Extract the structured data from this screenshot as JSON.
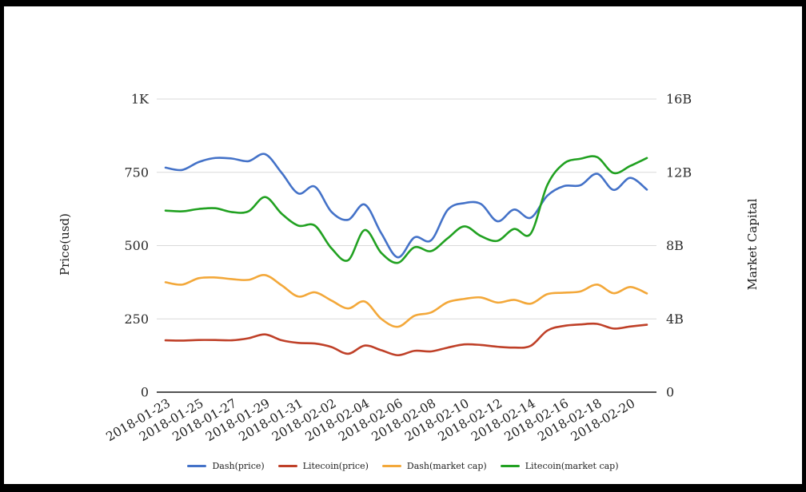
{
  "page": {
    "background": "#ffffff",
    "border_color": "#000000"
  },
  "chart_data": {
    "type": "line",
    "title": "",
    "x": [
      "2018-01-23",
      "2018-01-24",
      "2018-01-25",
      "2018-01-26",
      "2018-01-27",
      "2018-01-28",
      "2018-01-29",
      "2018-01-30",
      "2018-01-31",
      "2018-02-01",
      "2018-02-02",
      "2018-02-03",
      "2018-02-04",
      "2018-02-05",
      "2018-02-06",
      "2018-02-07",
      "2018-02-08",
      "2018-02-09",
      "2018-02-10",
      "2018-02-11",
      "2018-02-12",
      "2018-02-13",
      "2018-02-14",
      "2018-02-15",
      "2018-02-16",
      "2018-02-17",
      "2018-02-18",
      "2018-02-19",
      "2018-02-20",
      "2018-02-21"
    ],
    "x_tick_labels": [
      "2018-01-23",
      "2018-01-25",
      "2018-01-27",
      "2018-01-29",
      "2018-01-31",
      "2018-02-02",
      "2018-02-04",
      "2018-02-06",
      "2018-02-08",
      "2018-02-10",
      "2018-02-12",
      "2018-02-14",
      "2018-02-16",
      "2018-02-18",
      "2018-02-20"
    ],
    "left_axis": {
      "label": "Price(usd)",
      "min": 0,
      "max": 1000,
      "tick_values": [
        0,
        250,
        500,
        750,
        1000
      ],
      "tick_labels": [
        "0",
        "250",
        "500",
        "750",
        "1K"
      ]
    },
    "right_axis": {
      "label": "Market Capital",
      "min": 0,
      "max": 16,
      "unit": "billions",
      "tick_values": [
        0,
        4,
        8,
        12,
        16
      ],
      "tick_labels": [
        "0",
        "4B",
        "8B",
        "12B",
        "16B"
      ]
    },
    "grid": {
      "gridline_color": "#d9d9d9",
      "axis_line_color": "#1a1a1a",
      "vertical_gridlines": false
    },
    "legend_position": "bottom",
    "series": [
      {
        "name": "Dash(price)",
        "axis": "left",
        "color": "#4472C8",
        "values": [
          766,
          758,
          785,
          799,
          797,
          788,
          812,
          748,
          678,
          701,
          615,
          588,
          640,
          542,
          460,
          528,
          518,
          622,
          645,
          642,
          583,
          623,
          595,
          670,
          703,
          706,
          745,
          690,
          731,
          691
        ]
      },
      {
        "name": "Litecoin(price)",
        "axis": "left",
        "color": "#BF4028",
        "values": [
          177,
          176,
          178,
          178,
          177,
          184,
          197,
          177,
          168,
          166,
          154,
          131,
          159,
          143,
          126,
          141,
          139,
          152,
          163,
          161,
          155,
          152,
          158,
          210,
          226,
          231,
          233,
          217,
          224,
          230
        ]
      },
      {
        "name": "Dash(market cap)",
        "axis": "right",
        "color": "#F3A83A",
        "values": [
          6.0,
          5.87,
          6.22,
          6.26,
          6.17,
          6.13,
          6.39,
          5.83,
          5.22,
          5.45,
          5.0,
          4.57,
          4.95,
          4.0,
          3.57,
          4.17,
          4.35,
          4.91,
          5.09,
          5.17,
          4.89,
          5.04,
          4.83,
          5.35,
          5.43,
          5.5,
          5.87,
          5.4,
          5.74,
          5.39
        ]
      },
      {
        "name": "Litecoin(market cap)",
        "axis": "right",
        "color": "#21A121",
        "values": [
          9.91,
          9.87,
          10.0,
          10.04,
          9.83,
          9.87,
          10.65,
          9.74,
          9.09,
          9.09,
          7.85,
          7.2,
          8.85,
          7.6,
          7.06,
          7.91,
          7.7,
          8.4,
          9.05,
          8.52,
          8.26,
          8.91,
          8.65,
          11.3,
          12.48,
          12.74,
          12.83,
          11.96,
          12.35,
          12.78
        ]
      }
    ]
  }
}
